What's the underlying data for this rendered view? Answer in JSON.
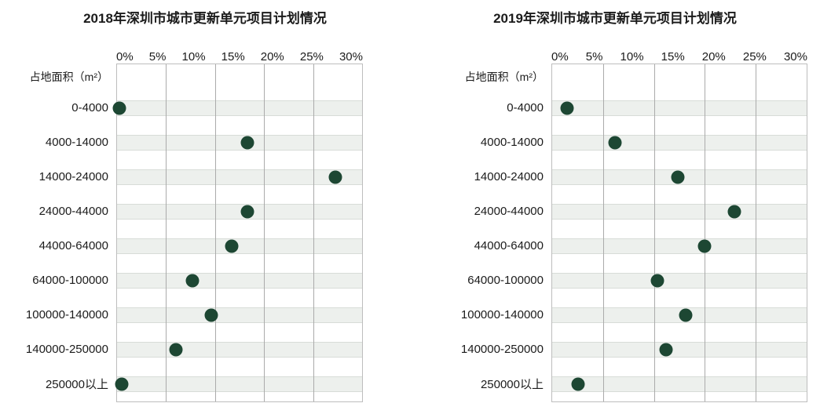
{
  "colors": {
    "dot": "#1d4733",
    "band": "#edf0ed",
    "gridline": "#ababab"
  },
  "chart_data": [
    {
      "type": "scatter",
      "title": "2018年深圳市城市更新单元项目计划情况",
      "ylabel": "占地面积（m²）",
      "xlabel": "",
      "ticks": [
        "0%",
        "5%",
        "10%",
        "15%",
        "20%",
        "25%",
        "30%"
      ],
      "xlim": [
        0,
        30
      ],
      "unit": "percent",
      "grid": "on",
      "categories": [
        "0-4000",
        "4000-14000",
        "14000-24000",
        "24000-44000",
        "44000-64000",
        "64000-100000",
        "100000-140000",
        "140000-250000",
        "250000以上"
      ],
      "values": [
        0.3,
        16.0,
        26.7,
        16.0,
        14.0,
        9.2,
        11.5,
        7.2,
        0.6
      ]
    },
    {
      "type": "scatter",
      "title": "2019年深圳市城市更新单元项目计划情况",
      "ylabel": "占地面积（m²）",
      "xlabel": "",
      "ticks": [
        "0%",
        "5%",
        "10%",
        "15%",
        "20%",
        "25%",
        "30%"
      ],
      "xlim": [
        0,
        30
      ],
      "unit": "percent",
      "grid": "on",
      "categories": [
        "0-4000",
        "4000-14000",
        "14000-24000",
        "24000-44000",
        "44000-64000",
        "64000-100000",
        "100000-140000",
        "140000-250000",
        "250000以上"
      ],
      "values": [
        1.8,
        7.4,
        14.8,
        21.5,
        18.0,
        12.4,
        15.7,
        13.4,
        3.1
      ]
    }
  ]
}
